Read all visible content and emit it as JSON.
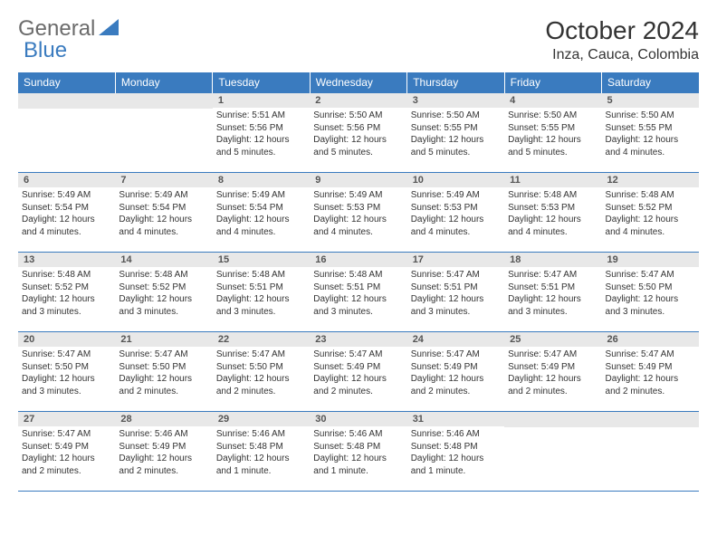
{
  "logo": {
    "general": "General",
    "blue": "Blue"
  },
  "title": "October 2024",
  "location": "Inza, Cauca, Colombia",
  "weekdays": [
    "Sunday",
    "Monday",
    "Tuesday",
    "Wednesday",
    "Thursday",
    "Friday",
    "Saturday"
  ],
  "colors": {
    "header_bg": "#3a7bbf",
    "header_text": "#ffffff",
    "daynum_bg": "#e8e8e8",
    "border": "#3a7bbf"
  },
  "weeks": [
    [
      null,
      null,
      {
        "n": "1",
        "sunrise": "5:51 AM",
        "sunset": "5:56 PM",
        "daylight": "12 hours and 5 minutes."
      },
      {
        "n": "2",
        "sunrise": "5:50 AM",
        "sunset": "5:56 PM",
        "daylight": "12 hours and 5 minutes."
      },
      {
        "n": "3",
        "sunrise": "5:50 AM",
        "sunset": "5:55 PM",
        "daylight": "12 hours and 5 minutes."
      },
      {
        "n": "4",
        "sunrise": "5:50 AM",
        "sunset": "5:55 PM",
        "daylight": "12 hours and 5 minutes."
      },
      {
        "n": "5",
        "sunrise": "5:50 AM",
        "sunset": "5:55 PM",
        "daylight": "12 hours and 4 minutes."
      }
    ],
    [
      {
        "n": "6",
        "sunrise": "5:49 AM",
        "sunset": "5:54 PM",
        "daylight": "12 hours and 4 minutes."
      },
      {
        "n": "7",
        "sunrise": "5:49 AM",
        "sunset": "5:54 PM",
        "daylight": "12 hours and 4 minutes."
      },
      {
        "n": "8",
        "sunrise": "5:49 AM",
        "sunset": "5:54 PM",
        "daylight": "12 hours and 4 minutes."
      },
      {
        "n": "9",
        "sunrise": "5:49 AM",
        "sunset": "5:53 PM",
        "daylight": "12 hours and 4 minutes."
      },
      {
        "n": "10",
        "sunrise": "5:49 AM",
        "sunset": "5:53 PM",
        "daylight": "12 hours and 4 minutes."
      },
      {
        "n": "11",
        "sunrise": "5:48 AM",
        "sunset": "5:53 PM",
        "daylight": "12 hours and 4 minutes."
      },
      {
        "n": "12",
        "sunrise": "5:48 AM",
        "sunset": "5:52 PM",
        "daylight": "12 hours and 4 minutes."
      }
    ],
    [
      {
        "n": "13",
        "sunrise": "5:48 AM",
        "sunset": "5:52 PM",
        "daylight": "12 hours and 3 minutes."
      },
      {
        "n": "14",
        "sunrise": "5:48 AM",
        "sunset": "5:52 PM",
        "daylight": "12 hours and 3 minutes."
      },
      {
        "n": "15",
        "sunrise": "5:48 AM",
        "sunset": "5:51 PM",
        "daylight": "12 hours and 3 minutes."
      },
      {
        "n": "16",
        "sunrise": "5:48 AM",
        "sunset": "5:51 PM",
        "daylight": "12 hours and 3 minutes."
      },
      {
        "n": "17",
        "sunrise": "5:47 AM",
        "sunset": "5:51 PM",
        "daylight": "12 hours and 3 minutes."
      },
      {
        "n": "18",
        "sunrise": "5:47 AM",
        "sunset": "5:51 PM",
        "daylight": "12 hours and 3 minutes."
      },
      {
        "n": "19",
        "sunrise": "5:47 AM",
        "sunset": "5:50 PM",
        "daylight": "12 hours and 3 minutes."
      }
    ],
    [
      {
        "n": "20",
        "sunrise": "5:47 AM",
        "sunset": "5:50 PM",
        "daylight": "12 hours and 3 minutes."
      },
      {
        "n": "21",
        "sunrise": "5:47 AM",
        "sunset": "5:50 PM",
        "daylight": "12 hours and 2 minutes."
      },
      {
        "n": "22",
        "sunrise": "5:47 AM",
        "sunset": "5:50 PM",
        "daylight": "12 hours and 2 minutes."
      },
      {
        "n": "23",
        "sunrise": "5:47 AM",
        "sunset": "5:49 PM",
        "daylight": "12 hours and 2 minutes."
      },
      {
        "n": "24",
        "sunrise": "5:47 AM",
        "sunset": "5:49 PM",
        "daylight": "12 hours and 2 minutes."
      },
      {
        "n": "25",
        "sunrise": "5:47 AM",
        "sunset": "5:49 PM",
        "daylight": "12 hours and 2 minutes."
      },
      {
        "n": "26",
        "sunrise": "5:47 AM",
        "sunset": "5:49 PM",
        "daylight": "12 hours and 2 minutes."
      }
    ],
    [
      {
        "n": "27",
        "sunrise": "5:47 AM",
        "sunset": "5:49 PM",
        "daylight": "12 hours and 2 minutes."
      },
      {
        "n": "28",
        "sunrise": "5:46 AM",
        "sunset": "5:49 PM",
        "daylight": "12 hours and 2 minutes."
      },
      {
        "n": "29",
        "sunrise": "5:46 AM",
        "sunset": "5:48 PM",
        "daylight": "12 hours and 1 minute."
      },
      {
        "n": "30",
        "sunrise": "5:46 AM",
        "sunset": "5:48 PM",
        "daylight": "12 hours and 1 minute."
      },
      {
        "n": "31",
        "sunrise": "5:46 AM",
        "sunset": "5:48 PM",
        "daylight": "12 hours and 1 minute."
      },
      null,
      null
    ]
  ],
  "labels": {
    "sunrise": "Sunrise:",
    "sunset": "Sunset:",
    "daylight": "Daylight:"
  }
}
